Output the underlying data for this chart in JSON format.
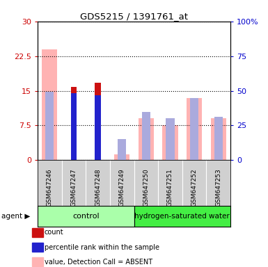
{
  "title": "GDS5215 / 1391761_at",
  "samples": [
    "GSM647246",
    "GSM647247",
    "GSM647248",
    "GSM647249",
    "GSM647250",
    "GSM647251",
    "GSM647252",
    "GSM647253"
  ],
  "ylim_left": [
    0,
    30
  ],
  "ylim_right": [
    0,
    100
  ],
  "yticks_left": [
    0,
    7.5,
    15,
    22.5,
    30
  ],
  "yticks_right": [
    0,
    25,
    50,
    75,
    100
  ],
  "yticklabels_left": [
    "0",
    "7.5",
    "15",
    "22.5",
    "30"
  ],
  "yticklabels_right": [
    "0",
    "25",
    "50",
    "75",
    "100%"
  ],
  "value_absent": [
    24.0,
    null,
    null,
    1.2,
    9.0,
    7.5,
    13.5,
    9.0
  ],
  "rank_absent_left": [
    null,
    null,
    null,
    4.5,
    10.5,
    9.0,
    null,
    9.5
  ],
  "rank_absent_right_pct": [
    null,
    null,
    null,
    15.0,
    35.0,
    30.0,
    null,
    31.0
  ],
  "count_present": [
    null,
    15.8,
    16.7,
    null,
    null,
    null,
    null,
    null
  ],
  "percentile_rank_present": [
    null,
    14.5,
    14.0,
    null,
    null,
    null,
    null,
    null
  ],
  "gsm646_rank_absent_left": [
    14.8,
    null,
    null,
    null,
    null,
    null,
    null,
    null
  ],
  "gsm646_rank_absent_right_pct": [
    49.5,
    null,
    null,
    null,
    null,
    null,
    null,
    null
  ],
  "gsm652_rank_absent_left": [
    null,
    null,
    null,
    null,
    null,
    null,
    13.5,
    null
  ],
  "gsm652_rank_absent_right_pct": [
    null,
    null,
    null,
    null,
    null,
    null,
    45.0,
    null
  ],
  "value_absent_color": "#ffb3b3",
  "rank_absent_color": "#aaaadd",
  "count_color": "#cc1111",
  "rank_color": "#2222cc",
  "left_axis_color": "#cc0000",
  "right_axis_color": "#0000cc",
  "control_color": "#aaffaa",
  "h2o_color": "#44ee44",
  "gray_bg": "#d0d0d0"
}
